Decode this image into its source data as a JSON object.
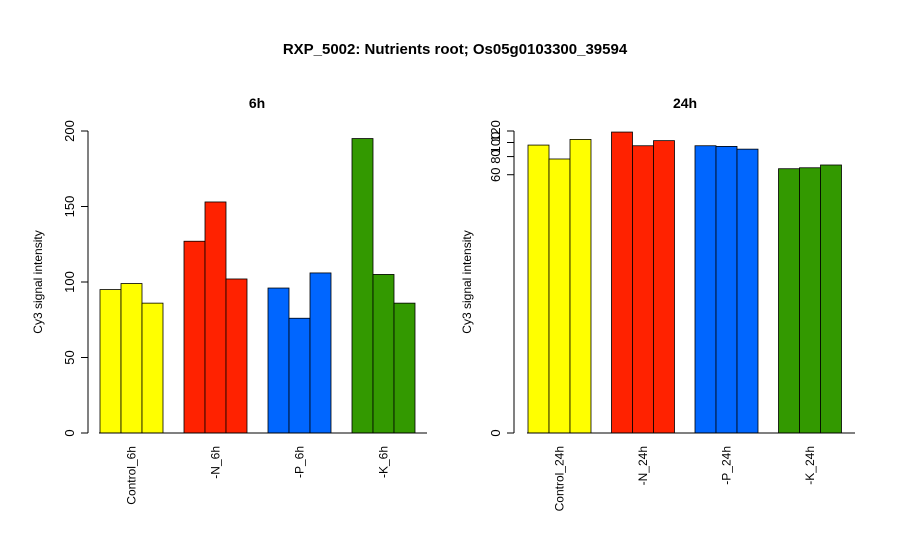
{
  "title": "RXP_5002: Nutrients root; Os05g0103300_39594",
  "chart_data": [
    {
      "type": "bar",
      "title": "6h",
      "ylabel": "Cy3 signal intensity",
      "ylim": [
        0,
        200
      ],
      "yticks": [
        "0",
        "50",
        "100",
        "150",
        "200"
      ],
      "categories": [
        "Control_6h",
        "-N_6h",
        "-P_6h",
        "-K_6h"
      ],
      "group_colors": [
        "#ffff00",
        "#ff2200",
        "#0066ff",
        "#339900"
      ],
      "values": [
        [
          95,
          99,
          86
        ],
        [
          127,
          153,
          102
        ],
        [
          96,
          76,
          106
        ],
        [
          195,
          105,
          86
        ]
      ],
      "grid": false
    },
    {
      "type": "bar",
      "title": "24h",
      "ylabel": "Cy3 signal intensity",
      "ylim": [
        0,
        120
      ],
      "yscale": "log",
      "yticks": [
        "0",
        "60",
        "80",
        "100",
        "120"
      ],
      "categories": [
        "Control_24h",
        "-N_24h",
        "-P_24h",
        "-K_24h"
      ],
      "group_colors": [
        "#ffff00",
        "#ff2200",
        "#0066ff",
        "#339900"
      ],
      "values": [
        [
          96,
          77,
          105
        ],
        [
          118,
          95,
          103
        ],
        [
          95,
          94,
          90
        ],
        [
          66,
          67,
          70
        ]
      ],
      "grid": false
    }
  ]
}
